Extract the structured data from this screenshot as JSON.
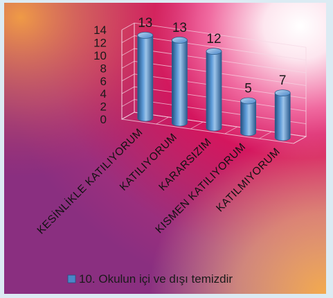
{
  "chart_data": {
    "type": "bar",
    "style": "3d-cylinder",
    "categories": [
      "KESİNLİKLE KATILIYORUM",
      "KATILIYORUM",
      "KARARSIZIM",
      "KISMEN KATILIYORUM",
      "KATILMIYORUM"
    ],
    "series": [
      {
        "name": "10. Okulun içi ve dışı temizdir",
        "values": [
          13,
          13,
          12,
          5,
          7
        ]
      }
    ],
    "ylim": [
      0,
      14
    ],
    "yticks": [
      0,
      2,
      4,
      6,
      8,
      10,
      12,
      14
    ],
    "grid": true,
    "data_labels": true,
    "legend_position": "bottom",
    "colors": {
      "bar": "#4a86c8",
      "bar_light": "#9cc4ea",
      "bar_dark": "#24507f"
    }
  }
}
